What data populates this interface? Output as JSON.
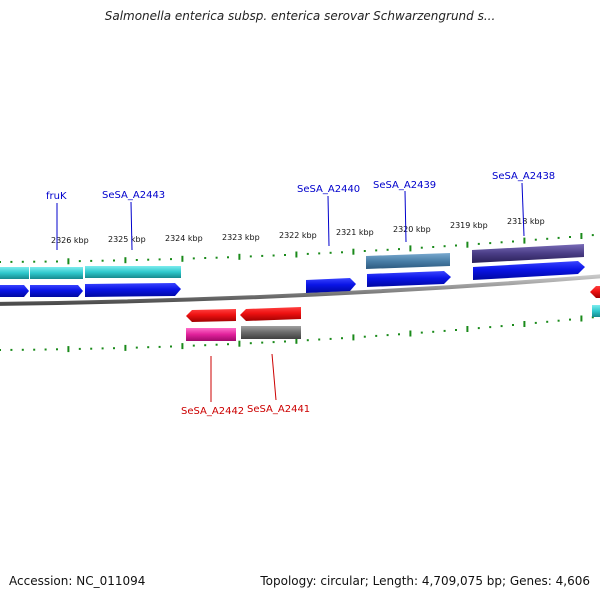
{
  "title": "Salmonella enterica subsp. enterica serovar Schwarzengrund s...",
  "footer": {
    "accession": "Accession: NC_011094",
    "summary": "Topology: circular; Length: 4,709,075 bp; Genes: 4,606"
  },
  "colors": {
    "forward_label": "#0000cc",
    "reverse_label": "#cc0000",
    "tick": "#1a8a1a",
    "backbone": "#8a8a8a",
    "cds_forward": "#0a14e6",
    "cds_reverse": "#ee1111",
    "feature_cyan": "#2ec8cc",
    "feature_steel": "#4a7fa8",
    "feature_purple": "#4a3d86",
    "feature_pink": "#e0209a",
    "feature_gray": "#6a6a6a"
  },
  "tick_labels": [
    "2326 kbp",
    "2325 kbp",
    "2324 kbp",
    "2323 kbp",
    "2322 kbp",
    "2321 kbp",
    "2320 kbp",
    "2319 kbp",
    "2318 kbp"
  ],
  "gene_labels": {
    "fruK": "fruK",
    "a2443": "SeSA_A2443",
    "a2440": "SeSA_A2440",
    "a2439": "SeSA_A2439",
    "a2438": "SeSA_A2438",
    "a2442": "SeSA_A2442",
    "a2441": "SeSA_A2441"
  }
}
